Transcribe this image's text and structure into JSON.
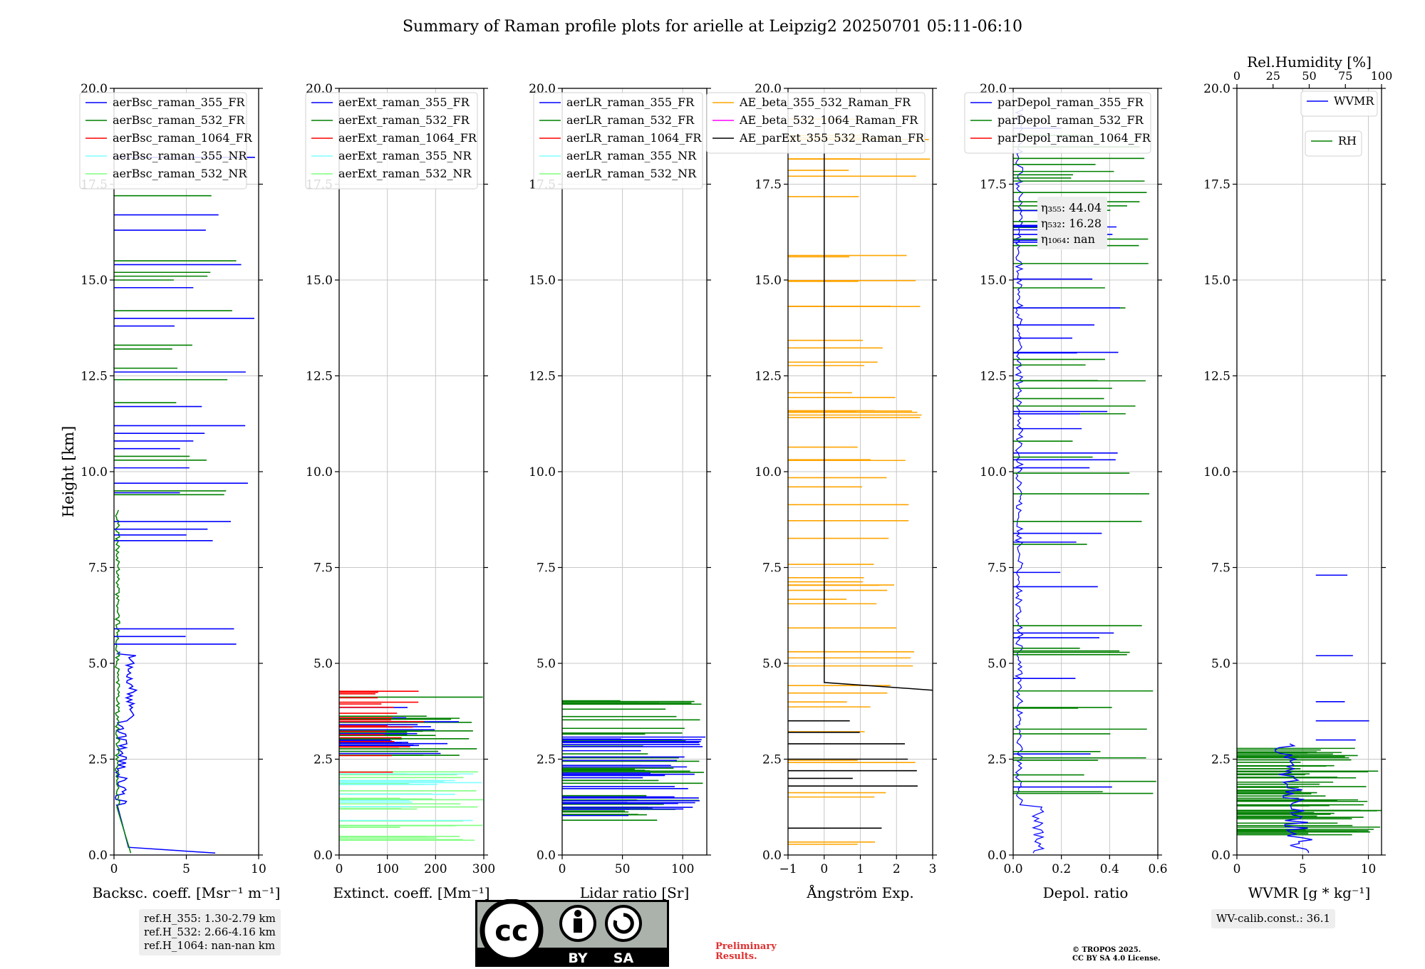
{
  "title": "Summary of Raman profile plots for arielle at Leipzig2 20250701 05:11-06:10",
  "ylabel": "Height [km]",
  "ylim": [
    0,
    20
  ],
  "yticks": [
    "0.0",
    "2.5",
    "5.0",
    "7.5",
    "10.0",
    "12.5",
    "15.0",
    "17.5",
    "20.0"
  ],
  "colors": {
    "blue": "#0000ff",
    "green": "#008000",
    "red": "#ff0000",
    "cyan": "#80ffff",
    "lightgreen": "#80ff80",
    "orange": "#ffa500",
    "magenta": "#ff00ff",
    "black": "#000000"
  },
  "chart_data": [
    {
      "type": "line",
      "xlabel": "Backsc. coeff. [Msr⁻¹ m⁻¹]",
      "xlim": [
        0,
        10
      ],
      "xticks": [
        "0",
        "5",
        "10"
      ],
      "legend": "top-left",
      "legend_entries": [
        "aerBsc_raman_355_FR",
        "aerBsc_raman_532_FR",
        "aerBsc_raman_1064_FR",
        "aerBsc_raman_355_NR",
        "aerBsc_raman_532_NR"
      ]
    },
    {
      "type": "line",
      "xlabel": "Extinct. coeff. [Mm⁻¹]",
      "xlim": [
        0,
        300
      ],
      "xticks": [
        "0",
        "100",
        "200",
        "300"
      ],
      "legend": "top-left",
      "legend_entries": [
        "aerExt_raman_355_FR",
        "aerExt_raman_532_FR",
        "aerExt_raman_1064_FR",
        "aerExt_raman_355_NR",
        "aerExt_raman_532_NR"
      ]
    },
    {
      "type": "line",
      "xlabel": "Lidar ratio [Sr]",
      "xlim": [
        0,
        120
      ],
      "xticks": [
        "0",
        "50",
        "100"
      ],
      "legend": "top-left",
      "legend_entries": [
        "aerLR_raman_355_FR",
        "aerLR_raman_532_FR",
        "aerLR_raman_1064_FR",
        "aerLR_raman_355_NR",
        "aerLR_raman_532_NR"
      ]
    },
    {
      "type": "line",
      "xlabel": "Ångström Exp.",
      "xlim": [
        -1,
        3
      ],
      "xticks": [
        "−1",
        "0",
        "1",
        "2",
        "3"
      ],
      "legend": "top-left",
      "legend_entries": [
        "AE_beta_355_532_Raman_FR",
        "AE_beta_532_1064_Raman_FR",
        "AE_parExt_355_532_Raman_FR"
      ]
    },
    {
      "type": "line",
      "xlabel": "Depol. ratio",
      "xlim": [
        0,
        0.6
      ],
      "xticks": [
        "0.0",
        "0.2",
        "0.4",
        "0.6"
      ],
      "legend": "top-left",
      "legend_entries": [
        "parDepol_raman_355_FR",
        "parDepol_raman_532_FR",
        "parDepol_raman_1064_FR"
      ],
      "annotation": [
        "η₃₅₅: 44.04",
        "η₅₃₂: 16.28",
        "η₁₀₆₄: nan"
      ]
    },
    {
      "type": "line",
      "xlabel": "WVMR [g * kg⁻¹]",
      "xlim": [
        0,
        11
      ],
      "xticks": [
        "0",
        "5",
        "10"
      ],
      "top_xlabel": "Rel.Humidity [%]",
      "top_xlim": [
        0,
        100
      ],
      "top_xticks": [
        "0",
        "25",
        "50",
        "75",
        "100"
      ],
      "legend_entries": [
        "WVMR",
        "RH"
      ]
    }
  ],
  "ref_heights": [
    "ref.H_355: 1.30-2.79 km",
    "ref.H_532: 2.66-4.16 km",
    "ref.H_1064: nan-nan km"
  ],
  "wv_calib": "WV-calib.const.: 36.1",
  "cc_labels": [
    "cc",
    "BY",
    "SA"
  ],
  "preliminary": [
    "Preliminary",
    "Results."
  ],
  "copyright": [
    "© TROPOS 2025.",
    "CC BY SA 4.0 License."
  ]
}
